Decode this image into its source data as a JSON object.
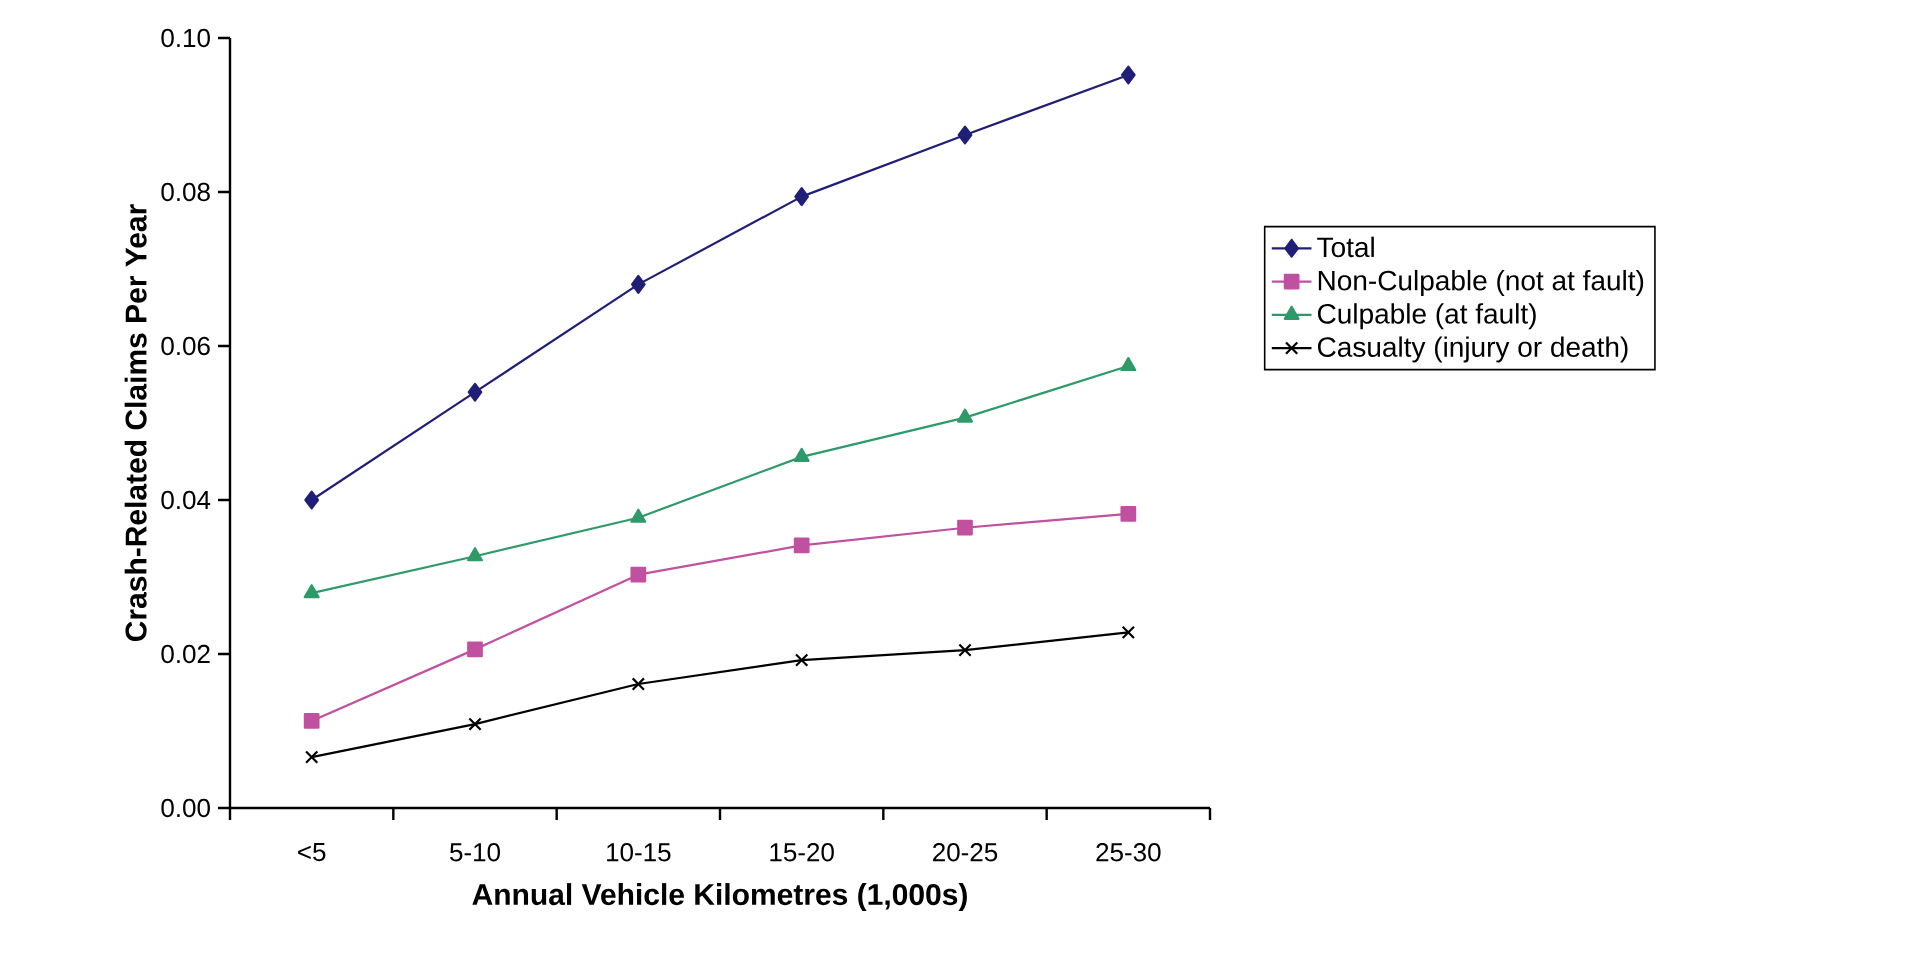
{
  "chart_data": {
    "type": "line",
    "xlabel": "Annual Vehicle Kilometres (1,000s)",
    "ylabel": "Crash-Related Claims Per Year",
    "categories": [
      "<5",
      "5-10",
      "10-15",
      "15-20",
      "20-25",
      "25-30"
    ],
    "ylim": [
      0,
      0.1
    ],
    "yticks": [
      {
        "value": 0,
        "label": "0.00"
      },
      {
        "value": 0.02,
        "label": "0.02"
      },
      {
        "value": 0.04,
        "label": "0.04"
      },
      {
        "value": 0.06,
        "label": "0.06"
      },
      {
        "value": 0.08,
        "label": "0.08"
      },
      {
        "value": 0.1,
        "label": "0.10"
      }
    ],
    "legend": "right",
    "series": [
      {
        "name": "Total",
        "color": "#1f1f78",
        "marker": "diamond",
        "values": [
          0.04,
          0.054,
          0.068,
          0.0794,
          0.0874,
          0.0952
        ]
      },
      {
        "name": "Non-Culpable (not at fault)",
        "color": "#c050a0",
        "marker": "square",
        "values": [
          0.0113,
          0.0206,
          0.0303,
          0.0341,
          0.0364,
          0.0382
        ]
      },
      {
        "name": "Culpable (at fault)",
        "color": "#2e9a68",
        "marker": "triangle",
        "values": [
          0.0279,
          0.0327,
          0.0377,
          0.0456,
          0.0507,
          0.0574
        ]
      },
      {
        "name": "Casualty (injury or death)",
        "color": "#000000",
        "marker": "cross",
        "values": [
          0.0066,
          0.0109,
          0.0161,
          0.0192,
          0.0205,
          0.0228
        ]
      }
    ]
  }
}
